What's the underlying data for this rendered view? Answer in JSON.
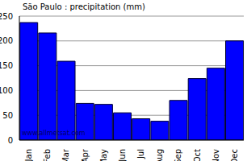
{
  "chart_data": {
    "type": "bar",
    "title": "São Paulo : precipitation (mm)",
    "categories": [
      "Jan",
      "Feb",
      "Mar",
      "Apr",
      "May",
      "Jun",
      "Jul",
      "Aug",
      "Sep",
      "Oct",
      "Nov",
      "Dec"
    ],
    "values": [
      237,
      216,
      159,
      74,
      72,
      55,
      43,
      38,
      80,
      124,
      145,
      200
    ],
    "color": "#0000ff",
    "ylim": [
      0,
      250
    ],
    "yticks": [
      0,
      50,
      100,
      150,
      200,
      250
    ],
    "grid": true,
    "annotations": [
      "www.allmetsat.com"
    ]
  }
}
